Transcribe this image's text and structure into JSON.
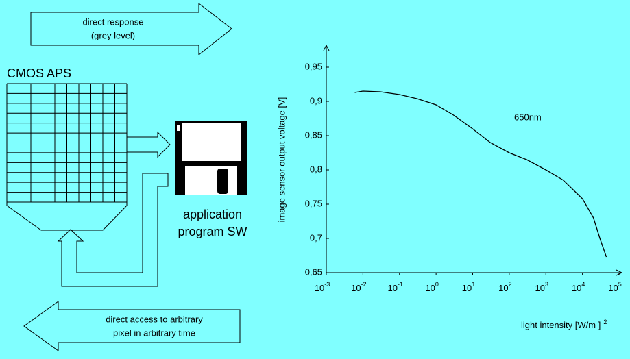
{
  "top_arrow": [
    "direct response",
    "(grey level)"
  ],
  "sensor": "CMOS APS",
  "software": [
    "application",
    "program SW"
  ],
  "bottom_arrow": [
    "direct access to arbitrary",
    "pixel in arbitrary time"
  ],
  "chart_data": {
    "type": "line",
    "xlabel": "light intensity [W/m ]",
    "xlabel_superscript": "2",
    "ylabel": "image sensor output voltage [V]",
    "annotation": "650nm",
    "xscale": "log",
    "xlim": [
      0.001,
      100000
    ],
    "ylim": [
      0.65,
      0.98
    ],
    "xticks": [
      {
        "value": 0.001,
        "label": "10",
        "exponent": "-3"
      },
      {
        "value": 0.01,
        "label": "10",
        "exponent": "-2"
      },
      {
        "value": 0.1,
        "label": "10",
        "exponent": "-1"
      },
      {
        "value": 1,
        "label": "10",
        "exponent": "0"
      },
      {
        "value": 10,
        "label": "10",
        "exponent": "1"
      },
      {
        "value": 100,
        "label": "10",
        "exponent": "2"
      },
      {
        "value": 1000,
        "label": "10",
        "exponent": "3"
      },
      {
        "value": 10000,
        "label": "10",
        "exponent": "4"
      },
      {
        "value": 100000,
        "label": "10",
        "exponent": "5"
      }
    ],
    "yticks": [
      {
        "value": 0.65,
        "label": "0,65"
      },
      {
        "value": 0.7,
        "label": "0,7"
      },
      {
        "value": 0.75,
        "label": "0,75"
      },
      {
        "value": 0.8,
        "label": "0,8"
      },
      {
        "value": 0.85,
        "label": "0,85"
      },
      {
        "value": 0.9,
        "label": "0,9"
      },
      {
        "value": 0.95,
        "label": "0,95"
      }
    ],
    "color": "#000000",
    "x": [
      0.006,
      0.01,
      0.03,
      0.1,
      0.3,
      1,
      3,
      10,
      30,
      100,
      300,
      1000,
      3000,
      10000,
      20000,
      30000,
      45000
    ],
    "values": [
      0.913,
      0.915,
      0.914,
      0.91,
      0.904,
      0.895,
      0.88,
      0.86,
      0.84,
      0.825,
      0.815,
      0.8,
      0.785,
      0.758,
      0.73,
      0.7,
      0.673
    ]
  }
}
